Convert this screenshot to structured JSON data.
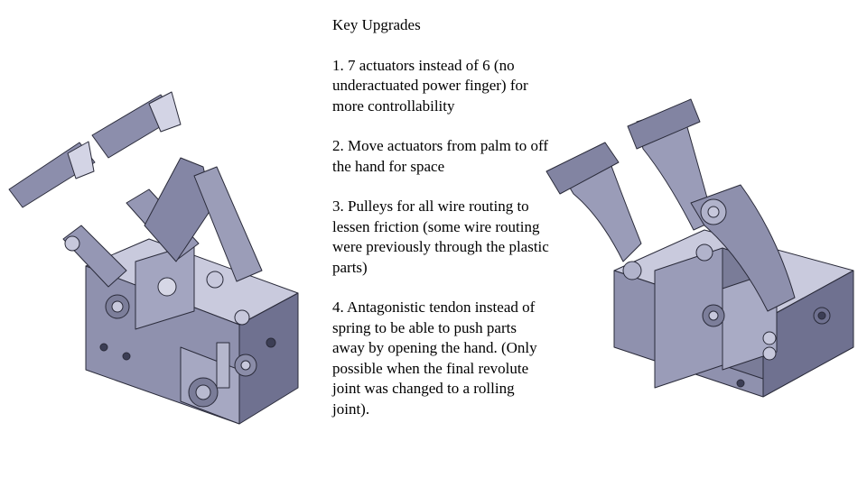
{
  "notes": {
    "title": "Key Upgrades",
    "items": [
      "1. 7 actuators instead of 6 (no underactuated power finger) for more controllability",
      "2. Move actuators from palm to off the hand for space",
      "3. Pulleys for all wire routing to lessen friction (some wire routing were previously through the plastic parts)",
      "4. Antagonistic tendon instead of spring to be able to push parts away by opening the hand. (Only possible when the final revolute joint was changed to a rolling joint)."
    ]
  },
  "colors": {
    "metal_light": "#c7c8dc",
    "metal_mid": "#9a9cb8",
    "metal_dark": "#5d5f78",
    "edge": "#2a2b3a"
  }
}
